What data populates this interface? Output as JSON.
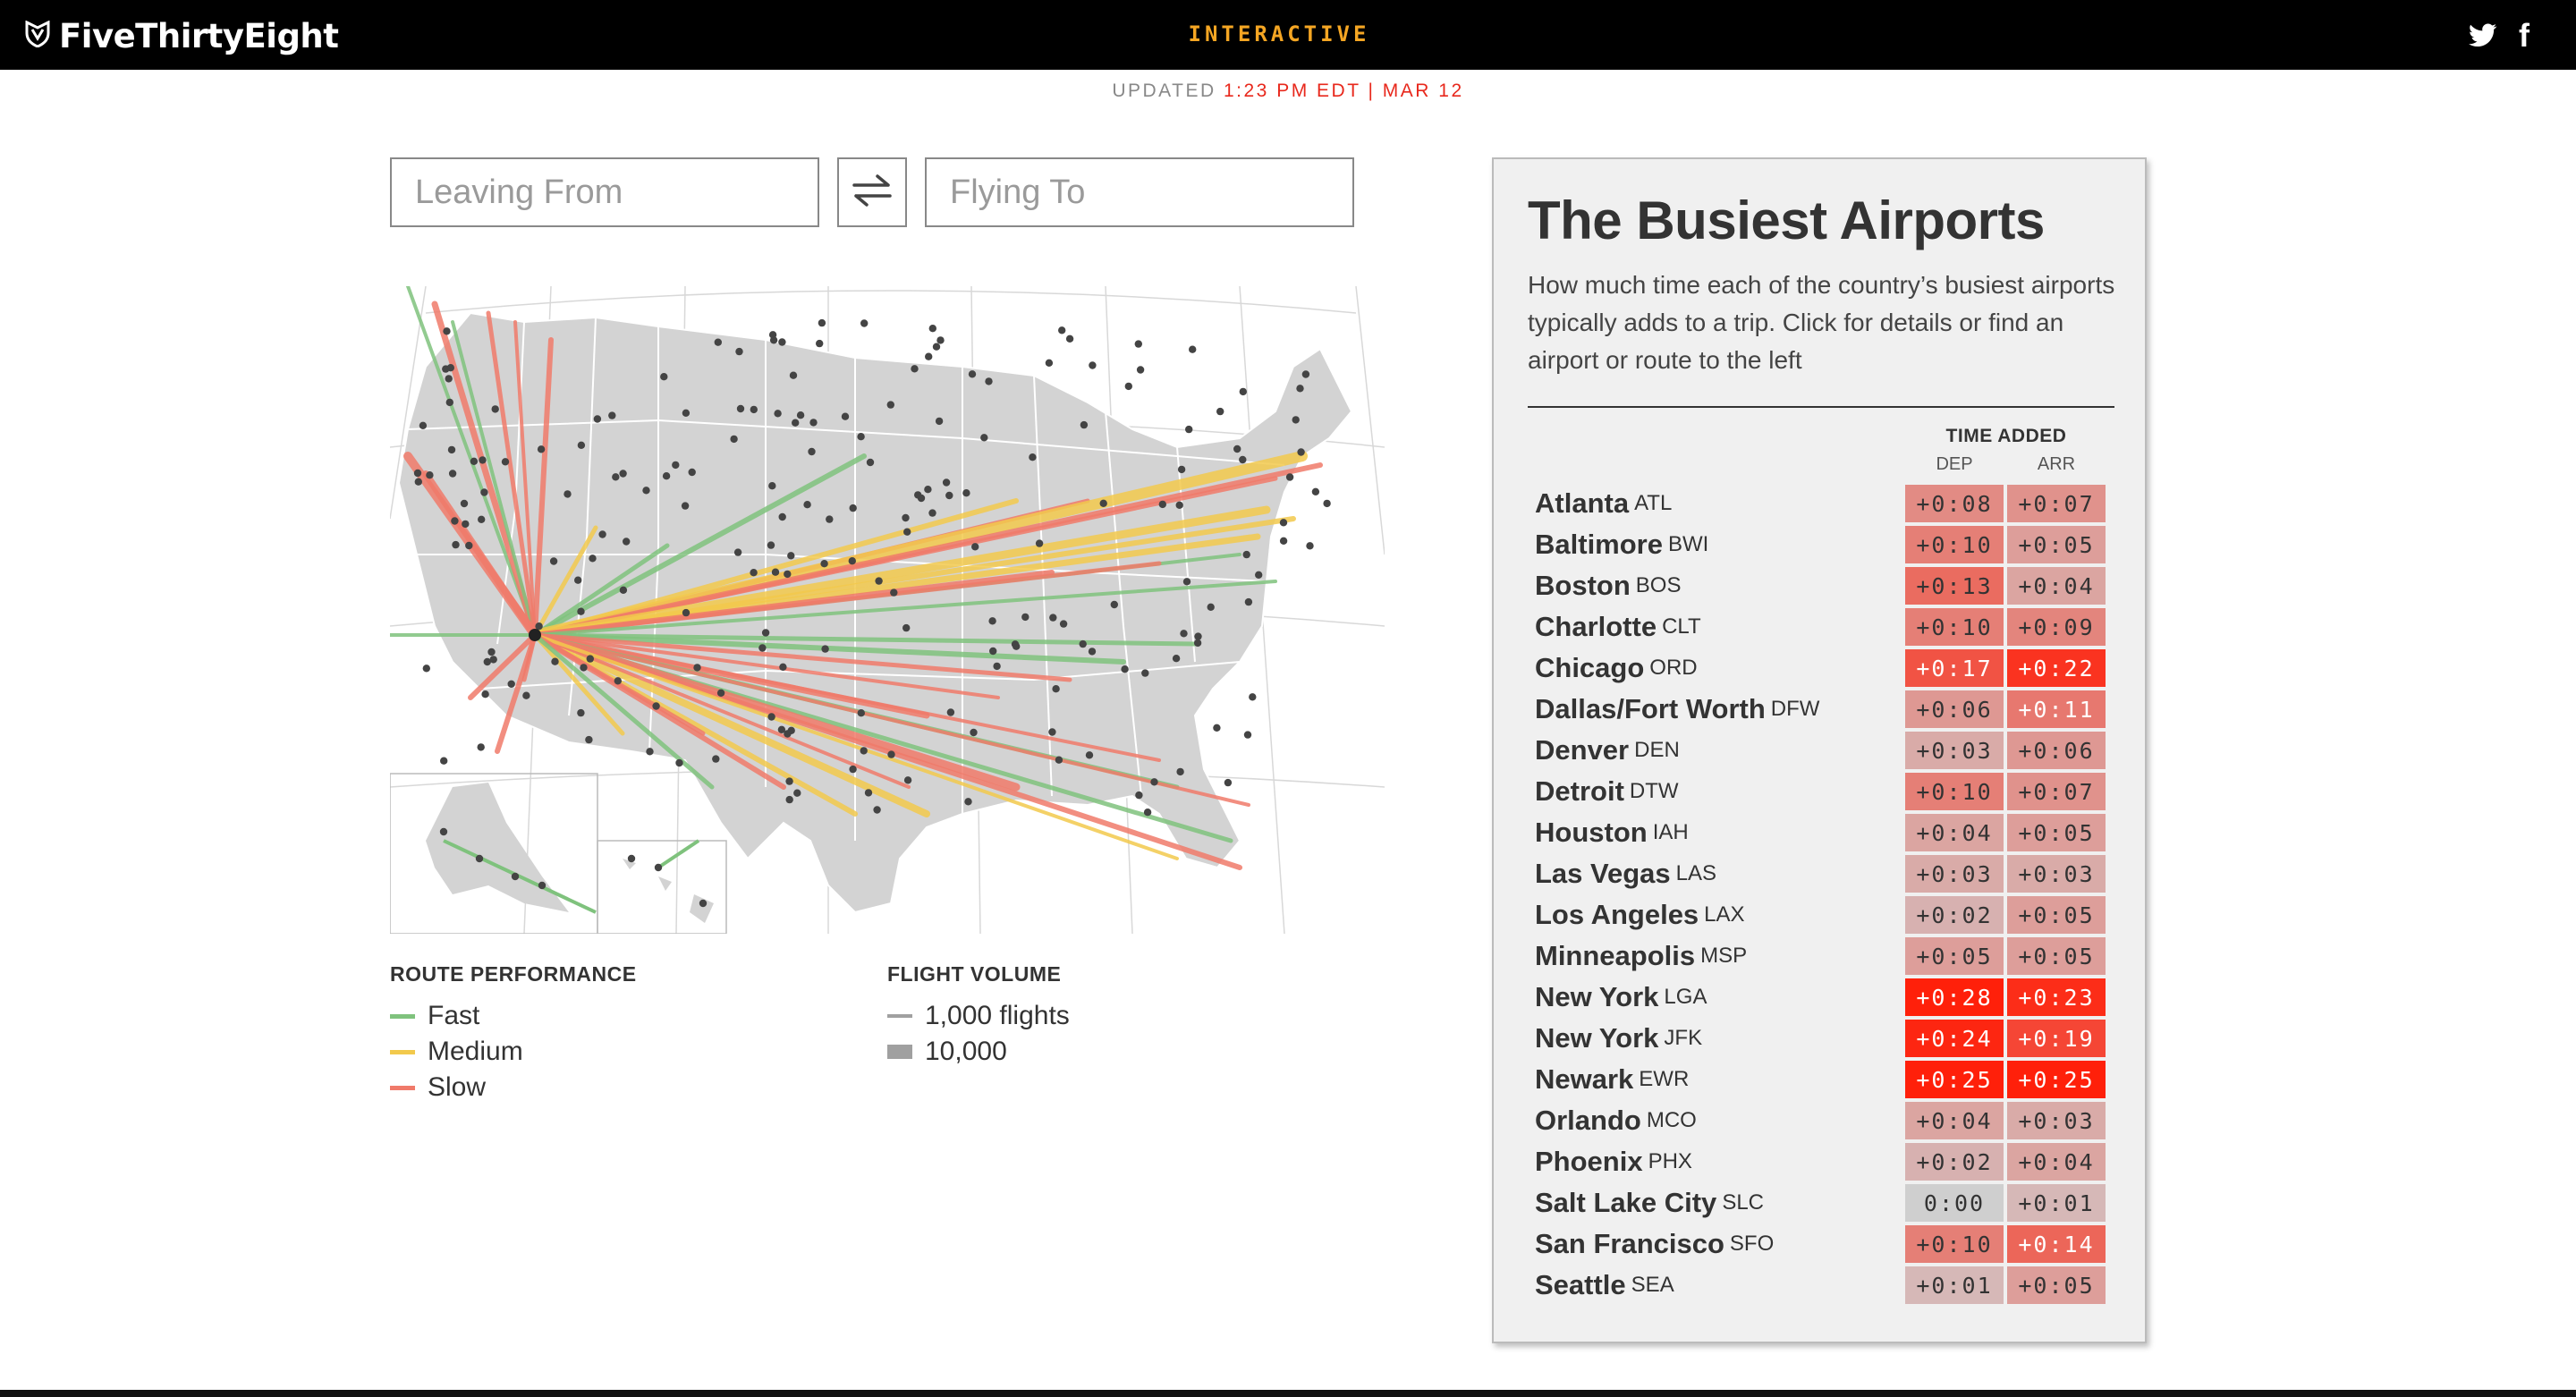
{
  "header": {
    "site_name": "FiveThirtyEight",
    "section": "INTERACTIVE",
    "logo_icon": "fox-shield-icon",
    "social": [
      {
        "name": "twitter",
        "icon": "twitter-icon"
      },
      {
        "name": "facebook",
        "icon": "facebook-icon",
        "glyph": "f"
      }
    ]
  },
  "updated": {
    "label": "UPDATED",
    "time": "1:23 PM EDT | MAR 12"
  },
  "search": {
    "leaving_placeholder": "Leaving From",
    "leaving_value": "",
    "flying_placeholder": "Flying To",
    "flying_value": "",
    "swap_icon": "swap-arrows-icon"
  },
  "legend": {
    "performance_title": "ROUTE PERFORMANCE",
    "performance_items": [
      {
        "label": "Fast",
        "color": "#7fc27d"
      },
      {
        "label": "Medium",
        "color": "#f2c94c"
      },
      {
        "label": "Slow",
        "color": "#f07a6a"
      }
    ],
    "volume_title": "FLIGHT VOLUME",
    "volume_items": [
      {
        "label": "1,000 flights",
        "color": "#a0a0a0"
      },
      {
        "label": "10,000",
        "color": "#a0a0a0"
      }
    ]
  },
  "panel": {
    "title": "The Busiest Airports",
    "description": "How much time each of the country’s busiest airports typically adds to a trip. Click for details or find an airport or route to the left",
    "time_added_label": "TIME ADDED",
    "dep_label": "DEP",
    "arr_label": "ARR",
    "airports": [
      {
        "name": "Atlanta",
        "code": "ATL",
        "dep": "+0:08",
        "arr": "+0:07",
        "dep_min": 8,
        "arr_min": 7
      },
      {
        "name": "Baltimore",
        "code": "BWI",
        "dep": "+0:10",
        "arr": "+0:05",
        "dep_min": 10,
        "arr_min": 5
      },
      {
        "name": "Boston",
        "code": "BOS",
        "dep": "+0:13",
        "arr": "+0:04",
        "dep_min": 13,
        "arr_min": 4
      },
      {
        "name": "Charlotte",
        "code": "CLT",
        "dep": "+0:10",
        "arr": "+0:09",
        "dep_min": 10,
        "arr_min": 9
      },
      {
        "name": "Chicago",
        "code": "ORD",
        "dep": "+0:17",
        "arr": "+0:22",
        "dep_min": 17,
        "arr_min": 22
      },
      {
        "name": "Dallas/Fort Worth",
        "code": "DFW",
        "dep": "+0:06",
        "arr": "+0:11",
        "dep_min": 6,
        "arr_min": 11
      },
      {
        "name": "Denver",
        "code": "DEN",
        "dep": "+0:03",
        "arr": "+0:06",
        "dep_min": 3,
        "arr_min": 6
      },
      {
        "name": "Detroit",
        "code": "DTW",
        "dep": "+0:10",
        "arr": "+0:07",
        "dep_min": 10,
        "arr_min": 7
      },
      {
        "name": "Houston",
        "code": "IAH",
        "dep": "+0:04",
        "arr": "+0:05",
        "dep_min": 4,
        "arr_min": 5
      },
      {
        "name": "Las Vegas",
        "code": "LAS",
        "dep": "+0:03",
        "arr": "+0:03",
        "dep_min": 3,
        "arr_min": 3
      },
      {
        "name": "Los Angeles",
        "code": "LAX",
        "dep": "+0:02",
        "arr": "+0:05",
        "dep_min": 2,
        "arr_min": 5
      },
      {
        "name": "Minneapolis",
        "code": "MSP",
        "dep": "+0:05",
        "arr": "+0:05",
        "dep_min": 5,
        "arr_min": 5
      },
      {
        "name": "New York",
        "code": "LGA",
        "dep": "+0:28",
        "arr": "+0:23",
        "dep_min": 28,
        "arr_min": 23
      },
      {
        "name": "New York",
        "code": "JFK",
        "dep": "+0:24",
        "arr": "+0:19",
        "dep_min": 24,
        "arr_min": 19
      },
      {
        "name": "Newark",
        "code": "EWR",
        "dep": "+0:25",
        "arr": "+0:25",
        "dep_min": 25,
        "arr_min": 25
      },
      {
        "name": "Orlando",
        "code": "MCO",
        "dep": "+0:04",
        "arr": "+0:03",
        "dep_min": 4,
        "arr_min": 3
      },
      {
        "name": "Phoenix",
        "code": "PHX",
        "dep": "+0:02",
        "arr": "+0:04",
        "dep_min": 2,
        "arr_min": 4
      },
      {
        "name": "Salt Lake City",
        "code": "SLC",
        "dep": "0:00",
        "arr": "+0:01",
        "dep_min": 0,
        "arr_min": 1
      },
      {
        "name": "San Francisco",
        "code": "SFO",
        "dep": "+0:10",
        "arr": "+0:14",
        "dep_min": 10,
        "arr_min": 14
      },
      {
        "name": "Seattle",
        "code": "SEA",
        "dep": "+0:01",
        "arr": "+0:05",
        "dep_min": 1,
        "arr_min": 5
      }
    ]
  },
  "map": {
    "icon": "us-route-map",
    "hub_label": "",
    "colors": {
      "fast": "#7fc27d",
      "medium": "#f2c94c",
      "slow": "#f07a6a",
      "slow_dark": "#ef5a3c",
      "land": "#d3d3d3",
      "dots": "#444444"
    }
  }
}
